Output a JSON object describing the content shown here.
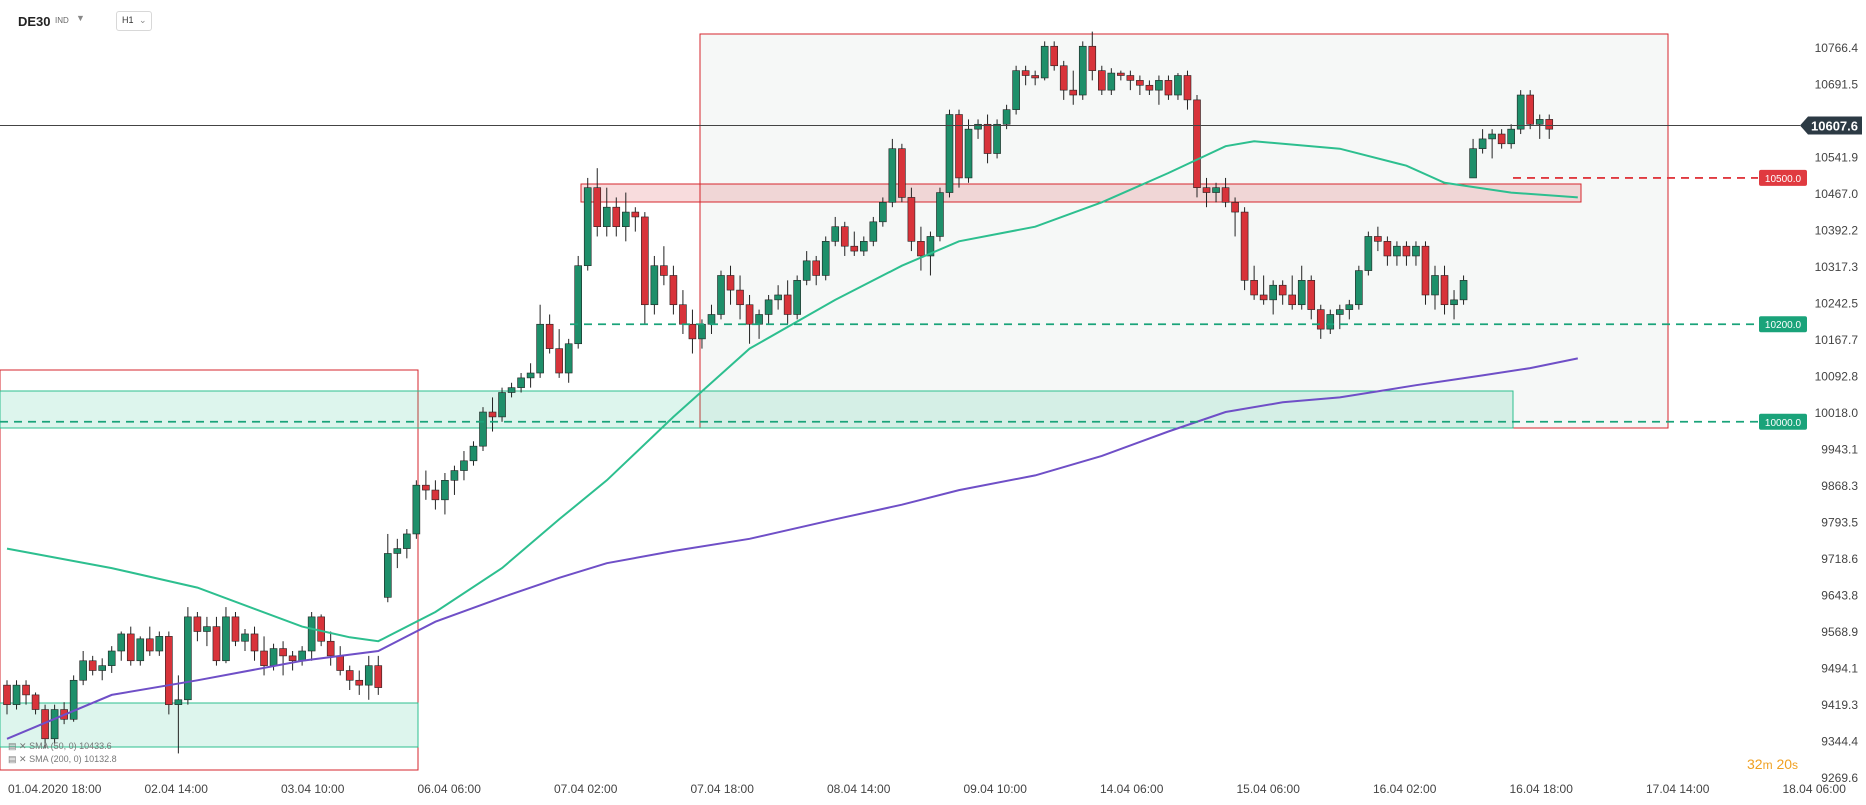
{
  "header": {
    "symbol": "DE30",
    "symbol_tag": "IND",
    "timeframe": "H1"
  },
  "legend": {
    "sma50": "SMA (50, 0) 10433.6",
    "sma200": "SMA (200, 0) 10132.8"
  },
  "countdown": {
    "minutes": "32",
    "m": "m",
    "seconds": "20",
    "s": "s"
  },
  "colors": {
    "bull": "#1e8f6a",
    "bear": "#d8333a",
    "sma50": "#2dbf8f",
    "sma200": "#6f4fc7",
    "box": "#d6262c",
    "zone_green": "#2dbf8f",
    "zone_red": "#d6262c"
  },
  "chart_data": {
    "type": "candlestick",
    "ylim": [
      9269.6,
      10816.0
    ],
    "yticks": [
      10766.4,
      10691.5,
      10541.9,
      10467.0,
      10392.2,
      10317.3,
      10242.5,
      10167.7,
      10092.8,
      10018.0,
      9943.1,
      9868.3,
      9793.5,
      9718.6,
      9643.8,
      9568.9,
      9494.1,
      9419.3,
      9344.4,
      9269.6
    ],
    "xticks": [
      "01.04.2020 18:00",
      "02.04 14:00",
      "03.04 10:00",
      "06.04 06:00",
      "07.04 02:00",
      "07.04 18:00",
      "08.04 14:00",
      "09.04 10:00",
      "14.04 06:00",
      "15.04 06:00",
      "16.04 02:00",
      "16.04 18:00",
      "17.04 14:00",
      "18.04 06:00"
    ],
    "current_price": "10607.6",
    "levels": [
      {
        "label": "10500.0",
        "value": 10500.0,
        "color": "red"
      },
      {
        "label": "10200.0",
        "value": 10200.0,
        "color": "green"
      },
      {
        "label": "10000.0",
        "value": 10000.0,
        "color": "green"
      }
    ],
    "candles": [
      [
        9460,
        9470,
        9400,
        9420
      ],
      [
        9420,
        9470,
        9410,
        9460
      ],
      [
        9460,
        9470,
        9420,
        9440
      ],
      [
        9440,
        9445,
        9400,
        9410
      ],
      [
        9410,
        9420,
        9330,
        9350
      ],
      [
        9350,
        9420,
        9340,
        9410
      ],
      [
        9410,
        9425,
        9380,
        9390
      ],
      [
        9390,
        9480,
        9385,
        9470
      ],
      [
        9470,
        9530,
        9460,
        9510
      ],
      [
        9510,
        9520,
        9480,
        9490
      ],
      [
        9490,
        9515,
        9470,
        9500
      ],
      [
        9500,
        9540,
        9485,
        9530
      ],
      [
        9530,
        9570,
        9510,
        9565
      ],
      [
        9565,
        9580,
        9500,
        9510
      ],
      [
        9510,
        9560,
        9500,
        9555
      ],
      [
        9555,
        9580,
        9520,
        9530
      ],
      [
        9530,
        9570,
        9520,
        9560
      ],
      [
        9560,
        9570,
        9400,
        9420
      ],
      [
        9420,
        9480,
        9320,
        9430
      ],
      [
        9430,
        9620,
        9420,
        9600
      ],
      [
        9600,
        9610,
        9550,
        9570
      ],
      [
        9570,
        9600,
        9540,
        9580
      ],
      [
        9580,
        9600,
        9500,
        9510
      ],
      [
        9510,
        9620,
        9505,
        9600
      ],
      [
        9600,
        9610,
        9540,
        9550
      ],
      [
        9550,
        9575,
        9530,
        9565
      ],
      [
        9565,
        9580,
        9510,
        9530
      ],
      [
        9530,
        9560,
        9480,
        9500
      ],
      [
        9500,
        9545,
        9490,
        9535
      ],
      [
        9535,
        9550,
        9480,
        9520
      ],
      [
        9520,
        9530,
        9490,
        9510
      ],
      [
        9510,
        9540,
        9500,
        9530
      ],
      [
        9530,
        9610,
        9510,
        9600
      ],
      [
        9600,
        9605,
        9540,
        9550
      ],
      [
        9550,
        9570,
        9500,
        9520
      ],
      [
        9520,
        9540,
        9480,
        9490
      ],
      [
        9490,
        9500,
        9450,
        9470
      ],
      [
        9470,
        9490,
        9440,
        9460
      ],
      [
        9460,
        9520,
        9430,
        9500
      ],
      [
        9500,
        9520,
        9440,
        9455
      ],
      [
        9640,
        9770,
        9630,
        9730
      ],
      [
        9730,
        9760,
        9700,
        9740
      ],
      [
        9740,
        9780,
        9720,
        9770
      ],
      [
        9770,
        9880,
        9760,
        9870
      ],
      [
        9870,
        9900,
        9840,
        9860
      ],
      [
        9860,
        9880,
        9820,
        9840
      ],
      [
        9840,
        9895,
        9810,
        9880
      ],
      [
        9880,
        9910,
        9850,
        9900
      ],
      [
        9900,
        9940,
        9880,
        9920
      ],
      [
        9920,
        9960,
        9910,
        9950
      ],
      [
        9950,
        10030,
        9940,
        10020
      ],
      [
        10020,
        10050,
        9980,
        10010
      ],
      [
        10010,
        10070,
        10000,
        10060
      ],
      [
        10060,
        10080,
        10050,
        10070
      ],
      [
        10070,
        10100,
        10060,
        10090
      ],
      [
        10090,
        10120,
        10070,
        10100
      ],
      [
        10100,
        10240,
        10090,
        10200
      ],
      [
        10200,
        10220,
        10140,
        10150
      ],
      [
        10150,
        10190,
        10090,
        10100
      ],
      [
        10100,
        10170,
        10080,
        10160
      ],
      [
        10160,
        10340,
        10150,
        10320
      ],
      [
        10320,
        10500,
        10310,
        10480
      ],
      [
        10480,
        10520,
        10380,
        10400
      ],
      [
        10400,
        10480,
        10380,
        10440
      ],
      [
        10440,
        10460,
        10380,
        10400
      ],
      [
        10400,
        10470,
        10370,
        10430
      ],
      [
        10430,
        10440,
        10390,
        10420
      ],
      [
        10420,
        10430,
        10200,
        10240
      ],
      [
        10240,
        10340,
        10220,
        10320
      ],
      [
        10320,
        10360,
        10280,
        10300
      ],
      [
        10300,
        10320,
        10220,
        10240
      ],
      [
        10240,
        10270,
        10180,
        10200
      ],
      [
        10200,
        10230,
        10140,
        10170
      ],
      [
        10170,
        10210,
        10150,
        10200
      ],
      [
        10200,
        10240,
        10180,
        10220
      ],
      [
        10220,
        10310,
        10210,
        10300
      ],
      [
        10300,
        10320,
        10240,
        10270
      ],
      [
        10270,
        10300,
        10210,
        10240
      ],
      [
        10240,
        10260,
        10160,
        10200
      ],
      [
        10200,
        10230,
        10170,
        10220
      ],
      [
        10220,
        10260,
        10200,
        10250
      ],
      [
        10250,
        10280,
        10230,
        10260
      ],
      [
        10260,
        10290,
        10200,
        10220
      ],
      [
        10220,
        10300,
        10210,
        10290
      ],
      [
        10290,
        10350,
        10280,
        10330
      ],
      [
        10330,
        10340,
        10280,
        10300
      ],
      [
        10300,
        10380,
        10290,
        10370
      ],
      [
        10370,
        10420,
        10360,
        10400
      ],
      [
        10400,
        10410,
        10340,
        10360
      ],
      [
        10360,
        10390,
        10340,
        10350
      ],
      [
        10350,
        10380,
        10340,
        10370
      ],
      [
        10370,
        10420,
        10360,
        10410
      ],
      [
        10410,
        10460,
        10400,
        10450
      ],
      [
        10450,
        10580,
        10440,
        10560
      ],
      [
        10560,
        10570,
        10450,
        10460
      ],
      [
        10460,
        10480,
        10350,
        10370
      ],
      [
        10370,
        10400,
        10310,
        10340
      ],
      [
        10340,
        10390,
        10300,
        10380
      ],
      [
        10380,
        10480,
        10370,
        10470
      ],
      [
        10470,
        10640,
        10460,
        10630
      ],
      [
        10630,
        10640,
        10480,
        10500
      ],
      [
        10500,
        10620,
        10490,
        10600
      ],
      [
        10600,
        10620,
        10580,
        10610
      ],
      [
        10610,
        10630,
        10530,
        10550
      ],
      [
        10550,
        10620,
        10540,
        10610
      ],
      [
        10610,
        10650,
        10600,
        10640
      ],
      [
        10640,
        10730,
        10630,
        10720
      ],
      [
        10720,
        10730,
        10690,
        10710
      ],
      [
        10710,
        10720,
        10690,
        10705
      ],
      [
        10705,
        10780,
        10700,
        10770
      ],
      [
        10770,
        10780,
        10720,
        10730
      ],
      [
        10730,
        10740,
        10660,
        10680
      ],
      [
        10680,
        10720,
        10650,
        10670
      ],
      [
        10670,
        10780,
        10660,
        10770
      ],
      [
        10770,
        10800,
        10700,
        10720
      ],
      [
        10720,
        10730,
        10670,
        10680
      ],
      [
        10680,
        10725,
        10670,
        10715
      ],
      [
        10715,
        10720,
        10700,
        10710
      ],
      [
        10710,
        10720,
        10680,
        10700
      ],
      [
        10700,
        10710,
        10670,
        10690
      ],
      [
        10690,
        10700,
        10670,
        10680
      ],
      [
        10680,
        10710,
        10650,
        10700
      ],
      [
        10700,
        10710,
        10660,
        10670
      ],
      [
        10670,
        10715,
        10660,
        10710
      ],
      [
        10710,
        10720,
        10640,
        10660
      ],
      [
        10660,
        10670,
        10460,
        10480
      ],
      [
        10480,
        10500,
        10440,
        10470
      ],
      [
        10470,
        10490,
        10450,
        10480
      ],
      [
        10480,
        10500,
        10440,
        10450
      ],
      [
        10450,
        10460,
        10380,
        10430
      ],
      [
        10430,
        10440,
        10270,
        10290
      ],
      [
        10290,
        10320,
        10250,
        10260
      ],
      [
        10260,
        10300,
        10240,
        10250
      ],
      [
        10250,
        10290,
        10220,
        10280
      ],
      [
        10280,
        10290,
        10240,
        10260
      ],
      [
        10260,
        10300,
        10230,
        10240
      ],
      [
        10240,
        10320,
        10230,
        10290
      ],
      [
        10290,
        10300,
        10210,
        10230
      ],
      [
        10230,
        10240,
        10170,
        10190
      ],
      [
        10190,
        10230,
        10180,
        10220
      ],
      [
        10220,
        10240,
        10190,
        10230
      ],
      [
        10230,
        10250,
        10210,
        10240
      ],
      [
        10240,
        10320,
        10230,
        10310
      ],
      [
        10310,
        10390,
        10300,
        10380
      ],
      [
        10380,
        10400,
        10350,
        10370
      ],
      [
        10370,
        10380,
        10320,
        10340
      ],
      [
        10340,
        10370,
        10320,
        10360
      ],
      [
        10360,
        10370,
        10320,
        10340
      ],
      [
        10340,
        10370,
        10320,
        10360
      ],
      [
        10360,
        10370,
        10240,
        10260
      ],
      [
        10260,
        10320,
        10230,
        10300
      ],
      [
        10300,
        10320,
        10220,
        10240
      ],
      [
        10240,
        10270,
        10210,
        10250
      ],
      [
        10250,
        10300,
        10240,
        10290
      ],
      [
        10500,
        10580,
        10500,
        10560
      ],
      [
        10560,
        10600,
        10550,
        10580
      ],
      [
        10580,
        10600,
        10540,
        10590
      ],
      [
        10590,
        10600,
        10560,
        10570
      ],
      [
        10570,
        10610,
        10560,
        10600
      ],
      [
        10600,
        10680,
        10590,
        10670
      ],
      [
        10670,
        10680,
        10600,
        10610
      ],
      [
        10610,
        10630,
        10580,
        10620
      ],
      [
        10620,
        10630,
        10580,
        10600
      ]
    ],
    "series": [
      {
        "name": "SMA (50, 0)",
        "points": [
          [
            0,
            9740
          ],
          [
            11,
            9700
          ],
          [
            20,
            9660
          ],
          [
            31,
            9580
          ],
          [
            36,
            9558
          ],
          [
            39,
            9550
          ],
          [
            45,
            9610
          ],
          [
            52,
            9700
          ],
          [
            58,
            9800
          ],
          [
            63,
            9880
          ],
          [
            70,
            10010
          ],
          [
            78,
            10150
          ],
          [
            87,
            10250
          ],
          [
            94,
            10320
          ],
          [
            100,
            10370
          ],
          [
            108,
            10400
          ],
          [
            115,
            10450
          ],
          [
            122,
            10510
          ],
          [
            128,
            10565
          ],
          [
            131,
            10575
          ],
          [
            140,
            10560
          ],
          [
            147,
            10525
          ],
          [
            151,
            10490
          ],
          [
            158,
            10470
          ],
          [
            165,
            10460
          ]
        ]
      },
      {
        "name": "SMA (200, 0)",
        "points": [
          [
            0,
            9350
          ],
          [
            11,
            9440
          ],
          [
            20,
            9470
          ],
          [
            31,
            9510
          ],
          [
            39,
            9530
          ],
          [
            45,
            9590
          ],
          [
            52,
            9640
          ],
          [
            58,
            9680
          ],
          [
            63,
            9710
          ],
          [
            70,
            9735
          ],
          [
            78,
            9760
          ],
          [
            87,
            9800
          ],
          [
            94,
            9830
          ],
          [
            100,
            9860
          ],
          [
            108,
            9890
          ],
          [
            115,
            9930
          ],
          [
            122,
            9980
          ],
          [
            128,
            10020
          ],
          [
            134,
            10040
          ],
          [
            140,
            10050
          ],
          [
            148,
            10075
          ],
          [
            155,
            10095
          ],
          [
            160,
            10110
          ],
          [
            165,
            10130
          ]
        ]
      }
    ]
  }
}
